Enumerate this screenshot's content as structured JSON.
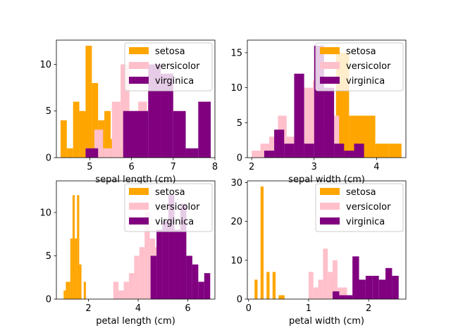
{
  "chart_data": [
    {
      "type": "bar",
      "xlabel": "sepal length (cm)",
      "ylabel": "",
      "xlim": [
        4.2,
        8.0
      ],
      "ylim": [
        0,
        12.6
      ],
      "xticks": [
        5,
        6,
        7,
        8
      ],
      "yticks": [
        0,
        5,
        10
      ],
      "legend": "top-right",
      "series": [
        {
          "name": "setosa",
          "color": "#ffa500",
          "bin_edges": [
            4.3,
            4.45,
            4.6,
            4.75,
            4.9,
            5.05,
            5.2,
            5.35,
            5.5,
            5.65,
            5.8
          ],
          "counts": [
            4,
            1,
            6,
            5,
            12,
            8,
            4,
            5,
            2,
            1
          ]
        },
        {
          "name": "versicolor",
          "color": "#ffc0cb",
          "bin_edges": [
            4.9,
            5.11,
            5.32,
            5.53,
            5.74,
            5.95,
            6.16,
            6.37,
            6.58,
            6.79,
            7.0
          ],
          "counts": [
            1,
            3,
            1,
            6,
            10,
            5,
            6,
            4,
            7,
            7
          ]
        },
        {
          "name": "virginica",
          "color": "#800080",
          "bin_edges": [
            4.9,
            5.2,
            5.5,
            5.8,
            6.1,
            6.4,
            6.7,
            7.0,
            7.3,
            7.6,
            7.9
          ],
          "counts": [
            1,
            0,
            0,
            5,
            5,
            10,
            9,
            5,
            1,
            6
          ]
        }
      ]
    },
    {
      "type": "bar",
      "xlabel": "sepal width (cm)",
      "ylabel": "",
      "xlim": [
        1.93,
        4.47
      ],
      "ylim": [
        0,
        16.8
      ],
      "xticks": [
        2,
        3,
        4
      ],
      "yticks": [
        0,
        5,
        10,
        15
      ],
      "legend": "top-right",
      "series": [
        {
          "name": "setosa",
          "color": "#ffa500",
          "bin_edges": [
            2.3,
            2.51,
            2.72,
            2.93,
            3.14,
            3.35,
            3.56,
            3.77,
            3.98,
            4.19,
            4.4
          ],
          "counts": [
            1,
            0,
            0,
            8,
            3,
            15,
            6,
            6,
            2,
            2
          ]
        },
        {
          "name": "versicolor",
          "color": "#ffc0cb",
          "bin_edges": [
            2.0,
            2.14,
            2.28,
            2.42,
            2.56,
            2.7,
            2.84,
            2.98,
            3.12,
            3.26,
            3.4
          ],
          "counts": [
            1,
            2,
            3,
            6,
            3,
            7,
            10,
            11,
            4,
            6
          ]
        },
        {
          "name": "virginica",
          "color": "#800080",
          "bin_edges": [
            2.2,
            2.36,
            2.52,
            2.68,
            2.84,
            3.0,
            3.16,
            3.32,
            3.48,
            3.64,
            3.8
          ],
          "counts": [
            1,
            4,
            2,
            12,
            2,
            16,
            10,
            2,
            1,
            2
          ]
        }
      ]
    },
    {
      "type": "bar",
      "xlabel": "petal length (cm)",
      "ylabel": "",
      "xlim": [
        0.71,
        7.09
      ],
      "ylim": [
        0,
        13.65
      ],
      "xticks": [
        2,
        4,
        6
      ],
      "yticks": [
        0,
        5,
        10
      ],
      "legend": "top-right",
      "series": [
        {
          "name": "setosa",
          "color": "#ffa500",
          "bin_edges": [
            1.0,
            1.09,
            1.18,
            1.27,
            1.36,
            1.45,
            1.54,
            1.63,
            1.72,
            1.81,
            1.9
          ],
          "counts": [
            1,
            2,
            2,
            7,
            12,
            7,
            12,
            4,
            0,
            2
          ]
        },
        {
          "name": "versicolor",
          "color": "#ffc0cb",
          "bin_edges": [
            3.0,
            3.21,
            3.42,
            3.63,
            3.84,
            4.05,
            4.26,
            4.47,
            4.68,
            4.89,
            5.1
          ],
          "counts": [
            2,
            1,
            2,
            3,
            5,
            6,
            10,
            7,
            6,
            8
          ]
        },
        {
          "name": "virginica",
          "color": "#800080",
          "bin_edges": [
            4.5,
            4.74,
            4.98,
            5.22,
            5.46,
            5.7,
            5.94,
            6.18,
            6.42,
            6.66,
            6.9
          ],
          "counts": [
            5,
            8,
            9,
            12,
            8,
            11,
            5,
            4,
            2,
            3
          ]
        }
      ]
    },
    {
      "type": "bar",
      "xlabel": "petal width (cm)",
      "ylabel": "",
      "xlim": [
        -0.02,
        2.62
      ],
      "ylim": [
        0,
        30.45
      ],
      "xticks": [
        0,
        1,
        2
      ],
      "yticks": [
        0,
        10,
        20,
        30
      ],
      "legend": "top-right",
      "series": [
        {
          "name": "setosa",
          "color": "#ffa500",
          "bin_edges": [
            0.1,
            0.15,
            0.2,
            0.25,
            0.3,
            0.35,
            0.4,
            0.45,
            0.5,
            0.55,
            0.6
          ],
          "counts": [
            5,
            0,
            29,
            0,
            7,
            0,
            7,
            0,
            1,
            1
          ]
        },
        {
          "name": "versicolor",
          "color": "#ffc0cb",
          "bin_edges": [
            1.0,
            1.08,
            1.16,
            1.24,
            1.32,
            1.4,
            1.48,
            1.56,
            1.64,
            1.72,
            1.8
          ],
          "counts": [
            7,
            3,
            5,
            13,
            7,
            10,
            3,
            3,
            0,
            1
          ]
        },
        {
          "name": "virginica",
          "color": "#800080",
          "bin_edges": [
            1.4,
            1.51,
            1.62,
            1.73,
            1.84,
            1.95,
            2.06,
            2.17,
            2.28,
            2.39,
            2.5
          ],
          "counts": [
            2,
            1,
            1,
            11,
            5,
            6,
            6,
            5,
            8,
            6
          ]
        }
      ]
    }
  ]
}
